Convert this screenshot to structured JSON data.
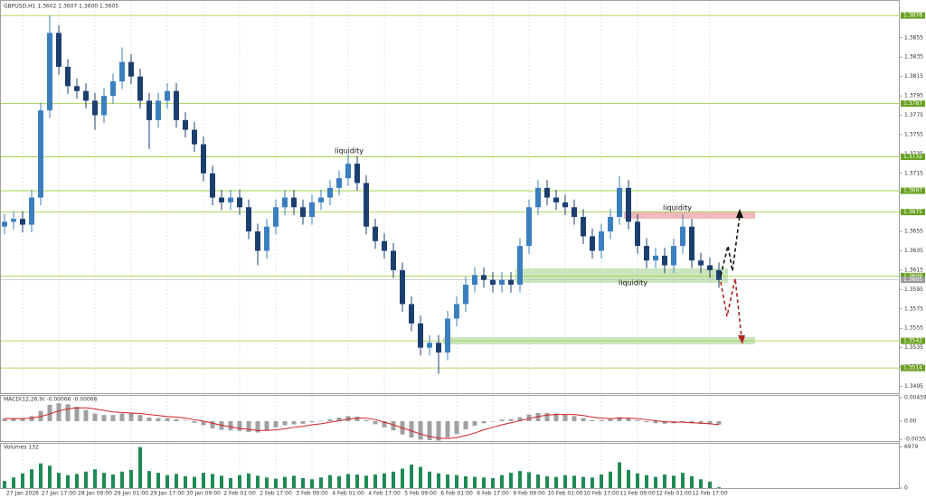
{
  "chart_data": [
    {
      "type": "candlestick",
      "title": "GBPUSD,H1  1.3602 1.3607 1.3600 1.3605",
      "categories": [
        null,
        null,
        "27 Jan 2026",
        null,
        null,
        null,
        "27 Jan 17:00",
        null,
        null,
        null,
        "28 Jan 09:00",
        null,
        null,
        null,
        "29 Jan 01:00",
        null,
        null,
        null,
        "29 Jan 17:00",
        null,
        null,
        null,
        "30 Jan 09:00",
        null,
        null,
        null,
        "2 Feb 01:00",
        null,
        null,
        null,
        "2 Feb 17:00",
        null,
        null,
        null,
        "3 Feb 09:00",
        null,
        null,
        null,
        "4 Feb 01:00",
        null,
        null,
        null,
        "4 Feb 17:00",
        null,
        null,
        null,
        "5 Feb 09:00",
        null,
        null,
        null,
        "6 Feb 01:00",
        null,
        null,
        null,
        "6 Feb 17:00",
        null,
        null,
        null,
        "9 Feb 09:00",
        null,
        null,
        null,
        "10 Feb 01:00",
        null,
        null,
        null,
        "10 Feb 17:00",
        null,
        null,
        null,
        "11 Feb 09:00",
        null,
        null,
        null,
        "12 Feb 01:00",
        null,
        null,
        null,
        "12 Feb 17:00",
        null
      ],
      "open": [
        1.366,
        1.3665,
        1.3668,
        1.3662,
        1.369,
        1.378,
        1.386,
        1.3825,
        1.3805,
        1.38,
        1.379,
        1.3775,
        1.3795,
        1.381,
        1.383,
        1.3815,
        1.379,
        1.377,
        1.379,
        1.38,
        1.377,
        1.376,
        1.3745,
        1.3715,
        1.369,
        1.3685,
        1.369,
        1.368,
        1.3655,
        1.3635,
        1.366,
        1.368,
        1.369,
        1.368,
        1.367,
        1.3685,
        1.369,
        1.37,
        1.371,
        1.3725,
        1.3705,
        1.366,
        1.3645,
        1.3635,
        1.3615,
        1.358,
        1.356,
        1.3535,
        1.354,
        1.353,
        1.3565,
        1.358,
        1.36,
        1.361,
        1.3605,
        1.36,
        1.3605,
        1.36,
        1.364,
        1.368,
        1.37,
        1.369,
        1.3685,
        1.368,
        1.367,
        1.365,
        1.3635,
        1.3655,
        1.367,
        1.37,
        1.3665,
        1.364,
        1.3625,
        1.363,
        1.362,
        1.364,
        1.366,
        1.3625,
        1.362,
        1.3615
      ],
      "high": [
        1.3673,
        1.3676,
        1.3676,
        1.3698,
        1.3788,
        1.3878,
        1.3868,
        1.3833,
        1.3813,
        1.3808,
        1.3798,
        1.3803,
        1.3818,
        1.3845,
        1.3838,
        1.3823,
        1.3798,
        1.3798,
        1.3808,
        1.3808,
        1.3778,
        1.3768,
        1.3753,
        1.3723,
        1.3698,
        1.3698,
        1.3698,
        1.3688,
        1.3663,
        1.3668,
        1.3688,
        1.3698,
        1.3698,
        1.3688,
        1.3693,
        1.3698,
        1.3708,
        1.3718,
        1.3735,
        1.3733,
        1.3713,
        1.3668,
        1.3653,
        1.3643,
        1.3623,
        1.3588,
        1.3568,
        1.3548,
        1.3548,
        1.3573,
        1.3588,
        1.3608,
        1.3618,
        1.3618,
        1.3613,
        1.3613,
        1.3613,
        1.3648,
        1.3688,
        1.3708,
        1.3708,
        1.3698,
        1.3693,
        1.3688,
        1.3678,
        1.3658,
        1.3663,
        1.3678,
        1.3712,
        1.3708,
        1.3673,
        1.3648,
        1.3638,
        1.3638,
        1.3648,
        1.3673,
        1.3668,
        1.3633,
        1.3628,
        1.3623
      ],
      "low": [
        1.3652,
        1.3657,
        1.3654,
        1.3654,
        1.3682,
        1.3772,
        1.3817,
        1.3797,
        1.3792,
        1.3782,
        1.376,
        1.3767,
        1.3787,
        1.3802,
        1.3807,
        1.3782,
        1.374,
        1.3762,
        1.3782,
        1.3762,
        1.3752,
        1.3737,
        1.3707,
        1.3682,
        1.3677,
        1.3677,
        1.3672,
        1.3647,
        1.362,
        1.3627,
        1.3652,
        1.3672,
        1.3672,
        1.3662,
        1.3662,
        1.3677,
        1.3682,
        1.3692,
        1.3702,
        1.3697,
        1.3652,
        1.3637,
        1.3627,
        1.3607,
        1.3572,
        1.3552,
        1.3527,
        1.3527,
        1.3508,
        1.3522,
        1.3557,
        1.3572,
        1.3592,
        1.3597,
        1.3592,
        1.3592,
        1.3592,
        1.3592,
        1.3632,
        1.3672,
        1.3682,
        1.3677,
        1.3672,
        1.3662,
        1.3642,
        1.3627,
        1.3627,
        1.3647,
        1.3662,
        1.3657,
        1.3632,
        1.3617,
        1.3617,
        1.3612,
        1.3612,
        1.3632,
        1.3617,
        1.3612,
        1.3607,
        1.3597
      ],
      "close": [
        1.3665,
        1.3668,
        1.3662,
        1.369,
        1.378,
        1.386,
        1.3825,
        1.3805,
        1.38,
        1.379,
        1.3775,
        1.3795,
        1.381,
        1.383,
        1.3815,
        1.379,
        1.377,
        1.379,
        1.38,
        1.377,
        1.376,
        1.3745,
        1.3715,
        1.369,
        1.3685,
        1.369,
        1.368,
        1.3655,
        1.3635,
        1.366,
        1.368,
        1.369,
        1.368,
        1.367,
        1.3685,
        1.369,
        1.37,
        1.371,
        1.3725,
        1.3705,
        1.366,
        1.3645,
        1.3635,
        1.3615,
        1.358,
        1.356,
        1.3535,
        1.354,
        1.353,
        1.3565,
        1.358,
        1.36,
        1.361,
        1.3605,
        1.36,
        1.3605,
        1.36,
        1.364,
        1.368,
        1.37,
        1.369,
        1.3685,
        1.368,
        1.367,
        1.365,
        1.3635,
        1.3655,
        1.367,
        1.37,
        1.3665,
        1.364,
        1.3625,
        1.363,
        1.362,
        1.364,
        1.366,
        1.3625,
        1.362,
        1.3615,
        1.3605
      ],
      "up_color": "#3c7fc0",
      "down_color": "#1c3f70",
      "ylim": [
        1.3488,
        1.3894
      ],
      "yticks": [
        1.3855,
        1.3835,
        1.3815,
        1.3795,
        1.3775,
        1.3755,
        1.3735,
        1.3715,
        1.3695,
        1.3675,
        1.3655,
        1.3635,
        1.3615,
        1.3595,
        1.3575,
        1.3555,
        1.3535,
        1.3515,
        1.3495
      ],
      "levels": [
        1.3878,
        1.3787,
        1.3732,
        1.3697,
        1.3675,
        1.3609,
        1.3542,
        1.3514
      ],
      "level_color": "#9acd32",
      "current_price": 1.3605,
      "annotations": [
        "liquidity",
        "liquidity",
        "liquidity"
      ]
    },
    {
      "type": "macd",
      "title": "MACD(12,26,9) -0.00066 -0.00068",
      "histogram": [
        0.0005,
        0.0006,
        0.0006,
        0.001,
        0.002,
        0.0032,
        0.0035,
        0.0033,
        0.0028,
        0.0022,
        0.0015,
        0.0012,
        0.0012,
        0.0015,
        0.0016,
        0.0012,
        0.0007,
        0.0006,
        0.0006,
        0.0004,
        0.0001,
        -0.0003,
        -0.0008,
        -0.0014,
        -0.0017,
        -0.0018,
        -0.0019,
        -0.0021,
        -0.0022,
        -0.0018,
        -0.0012,
        -0.0008,
        -0.0006,
        -0.0005,
        -0.0002,
        0.0001,
        0.0004,
        0.0007,
        0.001,
        0.0009,
        0.0002,
        -0.0006,
        -0.0012,
        -0.0018,
        -0.0026,
        -0.0032,
        -0.0036,
        -0.0037,
        -0.0038,
        -0.0032,
        -0.0025,
        -0.0016,
        -0.0009,
        -0.0004,
        0.0,
        0.0003,
        0.0004,
        0.0008,
        0.0013,
        0.0016,
        0.0016,
        0.0015,
        0.0013,
        0.001,
        0.0006,
        0.0002,
        0.0002,
        0.0004,
        0.0008,
        0.0006,
        0.0002,
        -0.0002,
        -0.0004,
        -0.0005,
        -0.0004,
        -0.0002,
        -0.0004,
        -0.0005,
        -0.0006,
        -0.00066
      ],
      "signal": [
        0.0005,
        0.0005,
        0.0005,
        0.0006,
        0.0009,
        0.0014,
        0.002,
        0.0024,
        0.0026,
        0.0026,
        0.0024,
        0.0021,
        0.0018,
        0.0017,
        0.0016,
        0.0015,
        0.0013,
        0.0011,
        0.0009,
        0.0008,
        0.0006,
        0.0003,
        0.0,
        -0.0004,
        -0.0008,
        -0.0011,
        -0.0014,
        -0.0016,
        -0.0018,
        -0.0018,
        -0.0017,
        -0.0015,
        -0.0012,
        -0.001,
        -0.0007,
        -0.0005,
        -0.0002,
        0.0001,
        0.0004,
        0.0006,
        0.0006,
        0.0003,
        -0.0002,
        -0.0007,
        -0.0013,
        -0.0019,
        -0.0025,
        -0.003,
        -0.0033,
        -0.0034,
        -0.0032,
        -0.0028,
        -0.0023,
        -0.0017,
        -0.0012,
        -0.0007,
        -0.0003,
        0.0001,
        0.0005,
        0.0009,
        0.0012,
        0.0013,
        0.0013,
        0.0013,
        0.0011,
        0.0008,
        0.0006,
        0.0005,
        0.0006,
        0.0006,
        0.0005,
        0.0003,
        0.0001,
        -0.0001,
        -0.0002,
        -0.0002,
        -0.0003,
        -0.0004,
        -0.0005,
        -0.00068
      ],
      "histogram_color": "#a0a0a0",
      "signal_color": "#d42020",
      "ylim": [
        -0.00388,
        0.00512
      ],
      "yticks": [
        0.00459,
        {
          "value": 0,
          "label": "0.00"
        },
        -0.00355
      ]
    },
    {
      "type": "volume",
      "title": "Volumes 132",
      "values": [
        1200,
        1800,
        2500,
        3200,
        4200,
        3800,
        2600,
        2200,
        2400,
        2800,
        3200,
        2600,
        2300,
        2800,
        3100,
        6979,
        2900,
        2600,
        2200,
        2400,
        2000,
        1900,
        2600,
        2400,
        2100,
        1700,
        2200,
        2500,
        2100,
        1800,
        1600,
        1900,
        2100,
        1700,
        1500,
        1800,
        2200,
        2000,
        2400,
        2300,
        2100,
        2300,
        2500,
        2800,
        3300,
        4000,
        3600,
        2800,
        2500,
        2300,
        2200,
        2000,
        1900,
        1800,
        1700,
        2200,
        2600,
        2900,
        2700,
        2300,
        2000,
        1900,
        2200,
        2100,
        1900,
        1800,
        2300,
        2800,
        4400,
        3100,
        2500,
        2200,
        1900,
        2300,
        2100,
        2600,
        2000,
        1500,
        1100,
        132
      ],
      "color": "#1f8a55",
      "ylim": [
        0,
        7700
      ],
      "yticks": [
        6979,
        0
      ]
    }
  ]
}
